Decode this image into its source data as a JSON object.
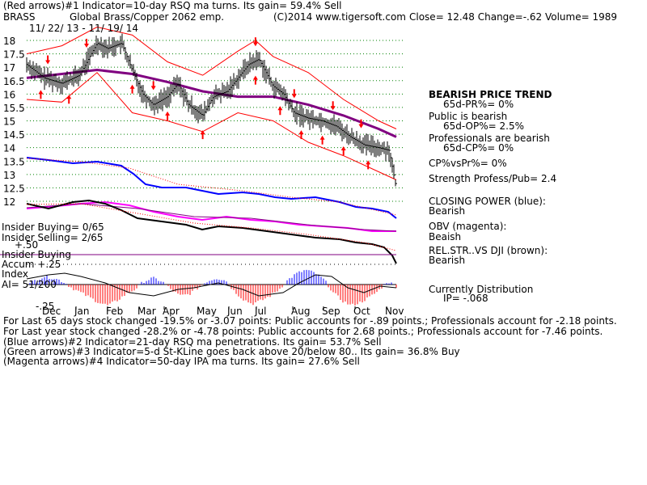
{
  "header": {
    "line1": "(Red arrows)#1 Indicator=10-day RSQ ma turns. Its gain= 59.4% Sell",
    "symbol": "BRASS",
    "name": "Global Brass/Copper 2062 emp.",
    "copyright": "(C)2014 www.tigersoft.com",
    "close": "Close=  12.48  Change=-.62 Volume= 1989",
    "dates": "11/ 22/ 13 - 11/ 19/ 14"
  },
  "right_panel": {
    "trend_title": "BEARISH PRICE TREND",
    "pr_pct": "65d-PR%= 0%",
    "public_label": "Public is bearish",
    "op_pct": "65d-OP%= 2.5%",
    "pros_label": "Professionals are bearish",
    "cp_pct": "65d-CP%= 0%",
    "cpvspr": "CP%vsPr%=  0%",
    "strength": "Strength Profess/Pub= 2.4",
    "closing_power_label": "CLOSING POWER (blue):",
    "closing_power_value": "Bearish",
    "obv_label": "OBV (magenta):",
    "obv_value": "Beaish",
    "relstr_label": "REL.STR..VS DJI (brown):",
    "relstr_value": "Bearish",
    "distribution_label": "Currently Distribution",
    "ip_value": "IP= -.068"
  },
  "left_labels": {
    "insider_buying": "Insider Buying= 0/65",
    "insider_selling": "Insider Selling= 2/65",
    "plus50": "+.50",
    "insider_buying2": "Insider Buying",
    "accum": "Accum  +.25",
    "index": "Index",
    "ai": "AI= 51/200",
    "minus25": "-.25"
  },
  "footer": {
    "line1": "For Last 65 days stock changed -19.5% or -3.07 points:  Public accounts for -.89 points.;  Professionals account for -2.18 points.",
    "line2": "For Last year stock changed -28.2% or -4.78 points:  Public accounts for  2.68 points.;  Professionals account for -7.46 points.",
    "line3": "(Blue arrows)#2 Indicator=21-day RSQ ma penetrations. Its gain= 53.7% Sell",
    "line4": "(Green arrows)#3 Indicator=5-d St-KLine goes back above 20/below 80.. Its gain= 36.8% Buy",
    "line5": "(Magenta arrows)#4 Indicator=50-day IPA ma turns. Its gain= 27.6% Sell"
  },
  "colors": {
    "price": "#000000",
    "bands": "#ff0000",
    "ma": "#800080",
    "closing_power": "#0000ff",
    "obv": "#ff00ff",
    "relstr": "#000000",
    "grid": "#008000",
    "up_bar": "#0000ff",
    "down_bar": "#ff0000",
    "arrow": "#ff0000"
  },
  "chart_data": {
    "type": "line",
    "title": "",
    "y_ticks": [
      18,
      17.5,
      17,
      16.5,
      16,
      15.5,
      15,
      14.5,
      14,
      13.5,
      13,
      12.5,
      12
    ],
    "ylim": [
      12,
      18.3
    ],
    "x_month_labels": [
      "Dec",
      "Jan",
      "Feb",
      "Mar",
      "Apr",
      "May",
      "Jun",
      "Jul",
      "Aug",
      "Sep",
      "Oct",
      "Nov"
    ],
    "price_close": [
      [
        0,
        17.1
      ],
      [
        0.5,
        16.6
      ],
      [
        1,
        16.4
      ],
      [
        1.5,
        16.7
      ],
      [
        2,
        17.9
      ],
      [
        2.3,
        17.7
      ],
      [
        2.7,
        17.9
      ],
      [
        3,
        16.9
      ],
      [
        3.3,
        16.0
      ],
      [
        3.6,
        15.6
      ],
      [
        4,
        15.9
      ],
      [
        4.3,
        16.4
      ],
      [
        4.6,
        15.6
      ],
      [
        5,
        15.2
      ],
      [
        5.3,
        15.9
      ],
      [
        5.7,
        16.1
      ],
      [
        6,
        16.6
      ],
      [
        6.3,
        17.1
      ],
      [
        6.6,
        17.3
      ],
      [
        7,
        16.3
      ],
      [
        7.3,
        16.0
      ],
      [
        7.6,
        15.3
      ],
      [
        8,
        15.1
      ],
      [
        8.4,
        15.0
      ],
      [
        8.8,
        14.8
      ],
      [
        9.2,
        14.4
      ],
      [
        9.6,
        14.1
      ],
      [
        10,
        14.0
      ],
      [
        10.3,
        13.9
      ],
      [
        10.5,
        12.5
      ]
    ],
    "ma50": [
      [
        0,
        16.6
      ],
      [
        1,
        16.75
      ],
      [
        2,
        16.9
      ],
      [
        3,
        16.75
      ],
      [
        4,
        16.45
      ],
      [
        5,
        16.1
      ],
      [
        6,
        15.9
      ],
      [
        7,
        15.9
      ],
      [
        8,
        15.6
      ],
      [
        9,
        15.2
      ],
      [
        10,
        14.7
      ],
      [
        10.5,
        14.4
      ]
    ],
    "upper_band": [
      [
        0,
        17.5
      ],
      [
        1,
        17.8
      ],
      [
        2,
        18.5
      ],
      [
        3,
        18.2
      ],
      [
        4,
        17.2
      ],
      [
        5,
        16.7
      ],
      [
        6,
        17.6
      ],
      [
        6.5,
        18.0
      ],
      [
        7,
        17.4
      ],
      [
        8,
        16.8
      ],
      [
        9,
        15.8
      ],
      [
        10,
        15.0
      ],
      [
        10.5,
        14.7
      ]
    ],
    "lower_band": [
      [
        0,
        15.8
      ],
      [
        1,
        15.7
      ],
      [
        2,
        16.8
      ],
      [
        3,
        15.3
      ],
      [
        4,
        15.0
      ],
      [
        5,
        14.6
      ],
      [
        6,
        15.3
      ],
      [
        7,
        15.0
      ],
      [
        8,
        14.2
      ],
      [
        9,
        13.7
      ],
      [
        10,
        13.1
      ],
      [
        10.5,
        12.8
      ]
    ],
    "red_arrows_down_x": [
      0.6,
      1.7,
      3.6,
      6.5,
      7.6,
      8.7,
      9.5
    ],
    "red_arrows_up_x": [
      0.4,
      1.2,
      3.0,
      4.0,
      5.0,
      6.5,
      7.2,
      7.8,
      8.4,
      9.0,
      9.7
    ]
  }
}
